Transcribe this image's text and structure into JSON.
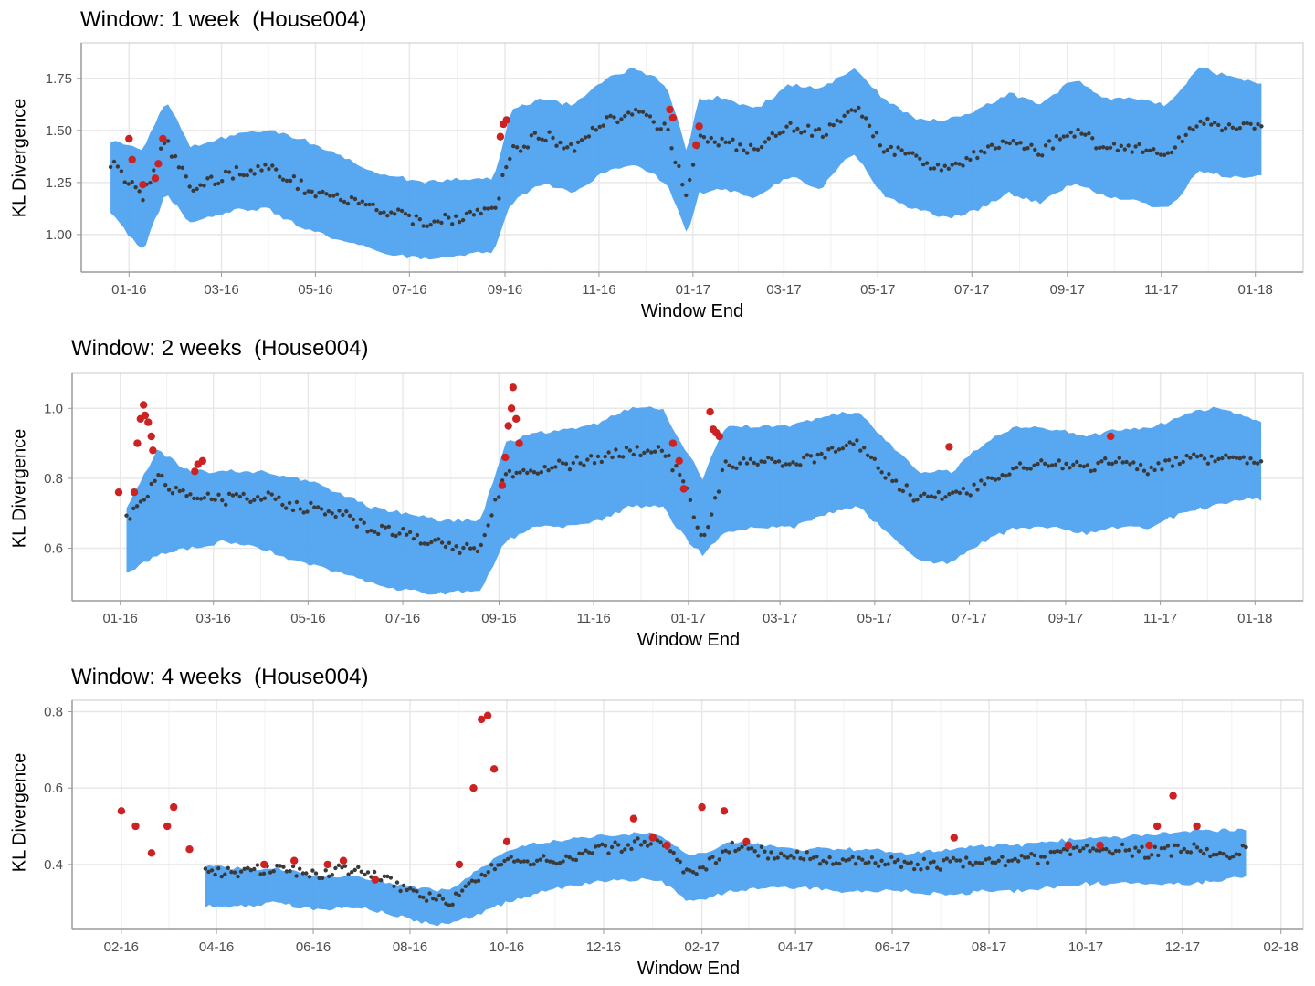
{
  "chart_data": [
    {
      "type": "scatter",
      "title": "Window: 1 week  (House004)",
      "xlabel": "Window End",
      "ylabel": "KL Divergence",
      "xlim": [
        "2015-12-01",
        "2018-02-01"
      ],
      "ylim": [
        0.82,
        1.92
      ],
      "x_ticks": [
        {
          "date": "2016-01-01",
          "label": "01-16"
        },
        {
          "date": "2016-03-01",
          "label": "03-16"
        },
        {
          "date": "2016-05-01",
          "label": "05-16"
        },
        {
          "date": "2016-07-01",
          "label": "07-16"
        },
        {
          "date": "2016-09-01",
          "label": "09-16"
        },
        {
          "date": "2016-11-01",
          "label": "11-16"
        },
        {
          "date": "2017-01-01",
          "label": "01-17"
        },
        {
          "date": "2017-03-01",
          "label": "03-17"
        },
        {
          "date": "2017-05-01",
          "label": "05-17"
        },
        {
          "date": "2017-07-01",
          "label": "07-17"
        },
        {
          "date": "2017-09-01",
          "label": "09-17"
        },
        {
          "date": "2017-11-01",
          "label": "11-17"
        },
        {
          "date": "2018-01-01",
          "label": "01-18"
        }
      ],
      "y_ticks": [
        {
          "value": 1.0,
          "label": "1.00"
        },
        {
          "value": 1.25,
          "label": "1.25"
        },
        {
          "value": 1.5,
          "label": "1.50"
        },
        {
          "value": 1.75,
          "label": "1.75"
        }
      ],
      "band_color": "#4a9ff0",
      "normal_color": "#3a3a3a",
      "anomaly_color": "#cc2222",
      "grid": true,
      "series": [
        {
          "x": [
            "2015-12-20",
            "2016-01-10",
            "2016-01-25",
            "2016-02-10",
            "2016-03-10",
            "2016-04-01",
            "2016-04-25",
            "2016-05-15",
            "2016-06-10",
            "2016-07-10",
            "2016-08-01",
            "2016-08-25",
            "2016-09-05",
            "2016-09-25",
            "2016-10-15",
            "2016-11-05",
            "2016-11-25",
            "2016-12-15",
            "2016-12-28",
            "2017-01-05",
            "2017-01-20",
            "2017-02-10",
            "2017-03-05",
            "2017-03-25",
            "2017-04-15",
            "2017-05-05",
            "2017-05-25",
            "2017-06-15",
            "2017-07-05",
            "2017-07-25",
            "2017-08-15",
            "2017-09-05",
            "2017-09-25",
            "2017-10-15",
            "2017-11-05",
            "2017-11-25",
            "2017-12-15",
            "2018-01-05"
          ],
          "y": [
            1.35,
            1.18,
            1.45,
            1.22,
            1.3,
            1.32,
            1.22,
            1.18,
            1.12,
            1.06,
            1.08,
            1.12,
            1.4,
            1.48,
            1.42,
            1.55,
            1.58,
            1.5,
            1.2,
            1.45,
            1.45,
            1.4,
            1.52,
            1.48,
            1.62,
            1.42,
            1.36,
            1.32,
            1.38,
            1.45,
            1.4,
            1.5,
            1.42,
            1.42,
            1.38,
            1.55,
            1.52,
            1.5
          ],
          "band_lower": [
            1.1,
            0.92,
            1.2,
            1.05,
            1.12,
            1.12,
            1.02,
            0.98,
            0.92,
            0.88,
            0.9,
            0.92,
            1.15,
            1.25,
            1.2,
            1.3,
            1.33,
            1.25,
            1.0,
            1.2,
            1.22,
            1.18,
            1.28,
            1.22,
            1.4,
            1.18,
            1.12,
            1.08,
            1.12,
            1.2,
            1.15,
            1.25,
            1.18,
            1.16,
            1.12,
            1.3,
            1.28,
            1.28
          ],
          "band_upper": [
            1.45,
            1.4,
            1.65,
            1.42,
            1.48,
            1.5,
            1.45,
            1.38,
            1.3,
            1.25,
            1.27,
            1.27,
            1.6,
            1.65,
            1.62,
            1.75,
            1.8,
            1.72,
            1.4,
            1.65,
            1.66,
            1.6,
            1.72,
            1.7,
            1.8,
            1.65,
            1.56,
            1.55,
            1.6,
            1.68,
            1.62,
            1.75,
            1.65,
            1.66,
            1.62,
            1.8,
            1.76,
            1.72
          ],
          "anomalies_x": [
            "2016-01-01",
            "2016-01-03",
            "2016-01-10",
            "2016-01-18",
            "2016-01-20",
            "2016-01-23",
            "2016-08-29",
            "2016-08-31",
            "2016-09-02",
            "2016-12-17",
            "2016-12-19",
            "2017-01-03",
            "2017-01-05"
          ],
          "anomalies_y": [
            1.46,
            1.36,
            1.24,
            1.27,
            1.34,
            1.46,
            1.47,
            1.53,
            1.55,
            1.6,
            1.56,
            1.43,
            1.52
          ]
        }
      ]
    },
    {
      "type": "scatter",
      "title": "Window: 2 weeks  (House004)",
      "xlabel": "Window End",
      "ylabel": "KL Divergence",
      "xlim": [
        "2015-12-01",
        "2018-02-01"
      ],
      "ylim": [
        0.45,
        1.1
      ],
      "x_ticks": [
        {
          "date": "2016-01-01",
          "label": "01-16"
        },
        {
          "date": "2016-03-01",
          "label": "03-16"
        },
        {
          "date": "2016-05-01",
          "label": "05-16"
        },
        {
          "date": "2016-07-01",
          "label": "07-16"
        },
        {
          "date": "2016-09-01",
          "label": "09-16"
        },
        {
          "date": "2016-11-01",
          "label": "11-16"
        },
        {
          "date": "2017-01-01",
          "label": "01-17"
        },
        {
          "date": "2017-03-01",
          "label": "03-17"
        },
        {
          "date": "2017-05-01",
          "label": "05-17"
        },
        {
          "date": "2017-07-01",
          "label": "07-17"
        },
        {
          "date": "2017-09-01",
          "label": "09-17"
        },
        {
          "date": "2017-11-01",
          "label": "11-17"
        },
        {
          "date": "2018-01-01",
          "label": "01-18"
        }
      ],
      "y_ticks": [
        {
          "value": 0.6,
          "label": "0.6"
        },
        {
          "value": 0.8,
          "label": "0.8"
        },
        {
          "value": 1.0,
          "label": "1.0"
        }
      ],
      "band_color": "#4a9ff0",
      "normal_color": "#3a3a3a",
      "anomaly_color": "#cc2222",
      "grid": true,
      "series": [
        {
          "x": [
            "2016-01-05",
            "2016-01-25",
            "2016-02-15",
            "2016-03-10",
            "2016-04-01",
            "2016-04-25",
            "2016-05-15",
            "2016-06-10",
            "2016-07-01",
            "2016-07-25",
            "2016-08-20",
            "2016-09-05",
            "2016-09-25",
            "2016-10-15",
            "2016-11-05",
            "2016-11-25",
            "2016-12-15",
            "2016-12-28",
            "2017-01-10",
            "2017-01-25",
            "2017-02-15",
            "2017-03-10",
            "2017-04-01",
            "2017-04-20",
            "2017-05-10",
            "2017-05-30",
            "2017-06-20",
            "2017-07-10",
            "2017-08-01",
            "2017-08-25",
            "2017-09-15",
            "2017-10-05",
            "2017-10-25",
            "2017-11-15",
            "2017-12-05",
            "2017-12-25",
            "2018-01-05"
          ],
          "y": [
            0.68,
            0.8,
            0.74,
            0.74,
            0.75,
            0.72,
            0.71,
            0.66,
            0.64,
            0.61,
            0.59,
            0.82,
            0.82,
            0.84,
            0.86,
            0.88,
            0.88,
            0.8,
            0.62,
            0.84,
            0.85,
            0.84,
            0.87,
            0.9,
            0.8,
            0.74,
            0.75,
            0.78,
            0.84,
            0.84,
            0.83,
            0.85,
            0.82,
            0.86,
            0.85,
            0.86,
            0.84
          ],
          "band_lower": [
            0.53,
            0.58,
            0.6,
            0.62,
            0.6,
            0.56,
            0.54,
            0.5,
            0.48,
            0.47,
            0.48,
            0.62,
            0.66,
            0.66,
            0.68,
            0.72,
            0.72,
            0.64,
            0.58,
            0.65,
            0.66,
            0.66,
            0.7,
            0.72,
            0.64,
            0.56,
            0.56,
            0.62,
            0.66,
            0.66,
            0.64,
            0.66,
            0.66,
            0.7,
            0.72,
            0.74,
            0.74
          ],
          "band_upper": [
            0.72,
            0.88,
            0.82,
            0.82,
            0.82,
            0.8,
            0.77,
            0.72,
            0.7,
            0.68,
            0.68,
            0.9,
            0.93,
            0.94,
            0.96,
            1.0,
            1.0,
            0.9,
            0.8,
            0.95,
            0.95,
            0.95,
            0.98,
            0.99,
            0.9,
            0.82,
            0.82,
            0.9,
            0.95,
            0.94,
            0.92,
            0.94,
            0.94,
            0.98,
            1.0,
            0.98,
            0.96
          ],
          "anomalies_x": [
            "2015-12-31",
            "2016-01-10",
            "2016-01-12",
            "2016-01-14",
            "2016-01-16",
            "2016-01-17",
            "2016-01-19",
            "2016-01-21",
            "2016-01-22",
            "2016-02-18",
            "2016-02-20",
            "2016-02-23",
            "2016-09-03",
            "2016-09-05",
            "2016-09-07",
            "2016-09-09",
            "2016-09-10",
            "2016-09-12",
            "2016-09-14",
            "2016-12-22",
            "2016-12-26",
            "2016-12-29",
            "2017-01-15",
            "2017-01-17",
            "2017-01-19",
            "2017-01-21",
            "2017-06-18",
            "2017-09-30"
          ],
          "anomalies_y": [
            0.76,
            0.76,
            0.9,
            0.97,
            1.01,
            0.98,
            0.96,
            0.92,
            0.88,
            0.82,
            0.84,
            0.85,
            0.78,
            0.86,
            0.95,
            1.0,
            1.06,
            0.97,
            0.9,
            0.9,
            0.85,
            0.77,
            0.99,
            0.94,
            0.93,
            0.92,
            0.89,
            0.92
          ]
        }
      ]
    },
    {
      "type": "scatter",
      "title": "Window: 4 weeks  (House004)",
      "xlabel": "Window End",
      "ylabel": "KL Divergence",
      "xlim": [
        "2016-01-01",
        "2018-02-15"
      ],
      "ylim": [
        0.23,
        0.83
      ],
      "x_ticks": [
        {
          "date": "2016-02-01",
          "label": "02-16"
        },
        {
          "date": "2016-04-01",
          "label": "04-16"
        },
        {
          "date": "2016-06-01",
          "label": "06-16"
        },
        {
          "date": "2016-08-01",
          "label": "08-16"
        },
        {
          "date": "2016-10-01",
          "label": "10-16"
        },
        {
          "date": "2016-12-01",
          "label": "12-16"
        },
        {
          "date": "2017-02-01",
          "label": "02-17"
        },
        {
          "date": "2017-04-01",
          "label": "04-17"
        },
        {
          "date": "2017-06-01",
          "label": "06-17"
        },
        {
          "date": "2017-08-01",
          "label": "08-17"
        },
        {
          "date": "2017-10-01",
          "label": "10-17"
        },
        {
          "date": "2017-12-01",
          "label": "12-17"
        },
        {
          "date": "2018-02-01",
          "label": "02-18"
        }
      ],
      "y_ticks": [
        {
          "value": 0.4,
          "label": "0.4"
        },
        {
          "value": 0.6,
          "label": "0.6"
        },
        {
          "value": 0.8,
          "label": "0.8"
        }
      ],
      "band_color": "#4a9ff0",
      "normal_color": "#3a3a3a",
      "anomaly_color": "#cc2222",
      "grid": true,
      "series": [
        {
          "x": [
            "2016-03-25",
            "2016-04-15",
            "2016-05-10",
            "2016-06-01",
            "2016-06-25",
            "2016-07-20",
            "2016-08-05",
            "2016-08-25",
            "2016-10-01",
            "2016-10-25",
            "2016-11-20",
            "2016-12-15",
            "2017-01-05",
            "2017-01-25",
            "2017-02-20",
            "2017-03-15",
            "2017-04-05",
            "2017-04-25",
            "2017-05-20",
            "2017-06-10",
            "2017-07-05",
            "2017-07-30",
            "2017-08-20",
            "2017-09-10",
            "2017-09-30",
            "2017-10-20",
            "2017-11-10",
            "2017-12-10",
            "2017-12-25",
            "2018-01-10"
          ],
          "y": [
            0.38,
            0.38,
            0.39,
            0.37,
            0.39,
            0.36,
            0.32,
            0.3,
            0.42,
            0.41,
            0.43,
            0.45,
            0.46,
            0.37,
            0.45,
            0.43,
            0.42,
            0.41,
            0.41,
            0.4,
            0.4,
            0.41,
            0.41,
            0.42,
            0.44,
            0.44,
            0.43,
            0.44,
            0.42,
            0.44
          ],
          "band_lower": [
            0.29,
            0.29,
            0.3,
            0.28,
            0.29,
            0.27,
            0.25,
            0.24,
            0.3,
            0.33,
            0.35,
            0.36,
            0.36,
            0.3,
            0.33,
            0.34,
            0.34,
            0.33,
            0.33,
            0.33,
            0.32,
            0.33,
            0.33,
            0.34,
            0.35,
            0.35,
            0.35,
            0.35,
            0.36,
            0.37
          ],
          "band_upper": [
            0.4,
            0.39,
            0.39,
            0.37,
            0.37,
            0.35,
            0.34,
            0.33,
            0.44,
            0.46,
            0.47,
            0.48,
            0.48,
            0.42,
            0.46,
            0.45,
            0.44,
            0.44,
            0.44,
            0.43,
            0.44,
            0.45,
            0.45,
            0.46,
            0.47,
            0.47,
            0.48,
            0.49,
            0.49,
            0.49
          ],
          "anomalies_x": [
            "2016-02-01",
            "2016-02-10",
            "2016-02-20",
            "2016-03-01",
            "2016-03-05",
            "2016-03-15",
            "2016-05-01",
            "2016-05-20",
            "2016-06-10",
            "2016-06-20",
            "2016-07-10",
            "2016-09-01",
            "2016-09-10",
            "2016-09-15",
            "2016-09-19",
            "2016-09-23",
            "2016-10-01",
            "2016-12-20",
            "2017-01-01",
            "2017-01-10",
            "2017-02-01",
            "2017-02-15",
            "2017-03-01",
            "2017-07-10",
            "2017-09-20",
            "2017-10-10",
            "2017-11-10",
            "2017-11-15",
            "2017-11-25",
            "2017-12-10"
          ],
          "anomalies_y": [
            0.54,
            0.5,
            0.43,
            0.5,
            0.55,
            0.44,
            0.4,
            0.41,
            0.4,
            0.41,
            0.36,
            0.4,
            0.6,
            0.78,
            0.79,
            0.65,
            0.46,
            0.52,
            0.47,
            0.45,
            0.55,
            0.54,
            0.46,
            0.47,
            0.45,
            0.45,
            0.45,
            0.5,
            0.58,
            0.5
          ]
        }
      ]
    }
  ]
}
